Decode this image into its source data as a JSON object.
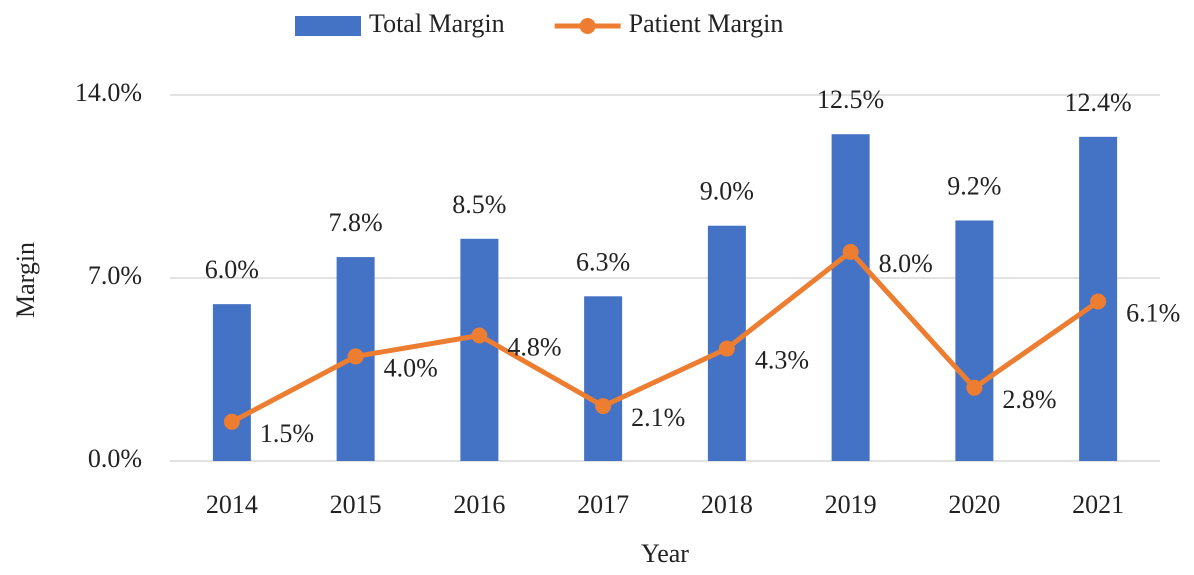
{
  "chart_data": {
    "type": "bar",
    "xlabel": "Year",
    "ylabel": "Margin",
    "categories": [
      "2014",
      "2015",
      "2016",
      "2017",
      "2018",
      "2019",
      "2020",
      "2021"
    ],
    "series": [
      {
        "name": "Total Margin",
        "type": "bar",
        "color": "#4472c4",
        "values": [
          6.0,
          7.8,
          8.5,
          6.3,
          9.0,
          12.5,
          9.2,
          12.4
        ],
        "value_labels": [
          "6.0%",
          "7.8%",
          "8.5%",
          "6.3%",
          "9.0%",
          "12.5%",
          "9.2%",
          "12.4%"
        ]
      },
      {
        "name": "Patient Margin",
        "type": "line",
        "color": "#ed7d31",
        "values": [
          1.5,
          4.0,
          4.8,
          2.1,
          4.3,
          8.0,
          2.8,
          6.1
        ],
        "value_labels": [
          "1.5%",
          "4.0%",
          "4.8%",
          "2.1%",
          "4.3%",
          "8.0%",
          "2.8%",
          "6.1%"
        ]
      }
    ],
    "ylim": [
      0,
      14
    ],
    "yticks": [
      {
        "value": 0,
        "label": "0.0%"
      },
      {
        "value": 7,
        "label": "7.0%"
      },
      {
        "value": 14,
        "label": "14.0%"
      }
    ],
    "grid": true,
    "legend": "top"
  }
}
